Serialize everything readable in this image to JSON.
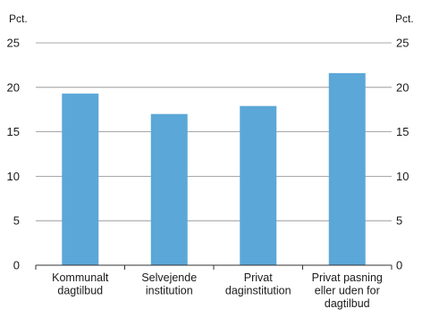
{
  "chart_data": {
    "type": "bar",
    "unit_left": "Pct.",
    "unit_right": "Pct.",
    "categories": [
      [
        "Kommunalt",
        "dagtilbud"
      ],
      [
        "Selvejende",
        "institution"
      ],
      [
        "Privat",
        "daginstitution"
      ],
      [
        "Privat pasning",
        "eller uden for",
        "dagtilbud"
      ]
    ],
    "values": [
      19.3,
      17.0,
      17.9,
      21.6
    ],
    "ylim": [
      0,
      25
    ],
    "yticks": [
      0,
      5,
      10,
      15,
      20,
      25
    ],
    "grid": true,
    "bar_color": "#5ba7d8"
  }
}
